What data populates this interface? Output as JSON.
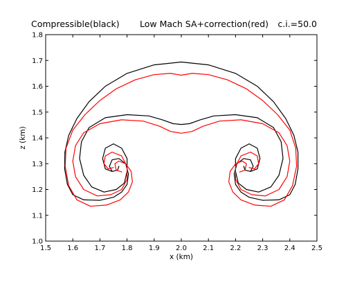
{
  "chart_data": {
    "type": "line",
    "title_left": "Compressible(black)",
    "title_center": "Low Mach SA+correction(red)",
    "title_right": "c.i.=50.0",
    "xlabel": "x (km)",
    "ylabel": "z (km)",
    "xlim": [
      1.5,
      2.5
    ],
    "ylim": [
      1.0,
      1.8
    ],
    "xticks": [
      "1.5",
      "1.6",
      "1.7",
      "1.8",
      "1.9",
      "2.0",
      "2.1",
      "2.2",
      "2.3",
      "2.4",
      "2.5"
    ],
    "yticks": [
      "1.0",
      "1.1",
      "1.2",
      "1.3",
      "1.4",
      "1.5",
      "1.6",
      "1.7",
      "1.8"
    ],
    "grid": false,
    "colors": {
      "compressible": "#000000",
      "low_mach": "#ff0000"
    },
    "series": [
      {
        "name": "Compressible",
        "color": "#000000",
        "contours": [
          {
            "label": "outer",
            "points": [
              [
                1.571,
                1.345
              ],
              [
                1.585,
                1.41
              ],
              [
                1.615,
                1.475
              ],
              [
                1.66,
                1.54
              ],
              [
                1.72,
                1.6
              ],
              [
                1.8,
                1.65
              ],
              [
                1.9,
                1.683
              ],
              [
                2.0,
                1.694
              ],
              [
                2.1,
                1.683
              ],
              [
                2.2,
                1.65
              ],
              [
                2.28,
                1.6
              ],
              [
                2.34,
                1.54
              ],
              [
                2.385,
                1.475
              ],
              [
                2.415,
                1.41
              ],
              [
                2.43,
                1.345
              ],
              [
                2.43,
                1.28
              ],
              [
                2.42,
                1.22
              ],
              [
                2.4,
                1.18
              ],
              [
                2.36,
                1.16
              ],
              [
                2.3,
                1.158
              ],
              [
                2.25,
                1.17
              ],
              [
                2.22,
                1.19
              ],
              [
                2.2,
                1.22
              ],
              [
                2.195,
                1.26
              ],
              [
                2.205,
                1.3
              ],
              [
                2.23,
                1.32
              ],
              [
                2.255,
                1.315
              ],
              [
                2.265,
                1.29
              ],
              [
                2.255,
                1.27
              ],
              [
                2.235,
                1.275
              ],
              [
                2.23,
                1.29
              ]
            ]
          },
          {
            "label": "outer-mirror",
            "points": [
              [
                1.571,
                1.345
              ],
              [
                1.57,
                1.28
              ],
              [
                1.58,
                1.22
              ],
              [
                1.6,
                1.18
              ],
              [
                1.64,
                1.16
              ],
              [
                1.7,
                1.158
              ],
              [
                1.75,
                1.17
              ],
              [
                1.78,
                1.19
              ],
              [
                1.8,
                1.22
              ],
              [
                1.805,
                1.26
              ],
              [
                1.795,
                1.3
              ],
              [
                1.77,
                1.32
              ],
              [
                1.745,
                1.315
              ],
              [
                1.735,
                1.29
              ],
              [
                1.745,
                1.27
              ],
              [
                1.765,
                1.275
              ],
              [
                1.77,
                1.29
              ]
            ]
          },
          {
            "label": "inner",
            "points": [
              [
                1.625,
                1.32
              ],
              [
                1.632,
                1.385
              ],
              [
                1.66,
                1.44
              ],
              [
                1.72,
                1.478
              ],
              [
                1.8,
                1.49
              ],
              [
                1.88,
                1.485
              ],
              [
                1.93,
                1.47
              ],
              [
                1.97,
                1.455
              ],
              [
                2.0,
                1.452
              ],
              [
                2.03,
                1.455
              ],
              [
                2.07,
                1.47
              ],
              [
                2.12,
                1.485
              ],
              [
                2.2,
                1.49
              ],
              [
                2.28,
                1.478
              ],
              [
                2.34,
                1.44
              ],
              [
                2.368,
                1.385
              ],
              [
                2.375,
                1.32
              ],
              [
                2.36,
                1.255
              ],
              [
                2.33,
                1.21
              ],
              [
                2.285,
                1.19
              ],
              [
                2.24,
                1.2
              ],
              [
                2.21,
                1.225
              ],
              [
                2.2,
                1.27
              ],
              [
                2.2,
                1.32
              ],
              [
                2.22,
                1.36
              ],
              [
                2.25,
                1.377
              ],
              [
                2.28,
                1.36
              ],
              [
                2.29,
                1.32
              ],
              [
                2.28,
                1.28
              ],
              [
                2.255,
                1.27
              ]
            ]
          },
          {
            "label": "inner-mirror",
            "points": [
              [
                1.625,
                1.32
              ],
              [
                1.64,
                1.255
              ],
              [
                1.67,
                1.21
              ],
              [
                1.715,
                1.19
              ],
              [
                1.76,
                1.2
              ],
              [
                1.79,
                1.225
              ],
              [
                1.8,
                1.27
              ],
              [
                1.8,
                1.32
              ],
              [
                1.78,
                1.36
              ],
              [
                1.75,
                1.377
              ],
              [
                1.72,
                1.36
              ],
              [
                1.71,
                1.32
              ],
              [
                1.72,
                1.28
              ],
              [
                1.745,
                1.27
              ]
            ]
          }
        ]
      },
      {
        "name": "Low Mach SA+correction",
        "color": "#ff0000",
        "contours": [
          {
            "label": "outer",
            "points": [
              [
                1.575,
                1.36
              ],
              [
                1.6,
                1.43
              ],
              [
                1.645,
                1.49
              ],
              [
                1.7,
                1.545
              ],
              [
                1.76,
                1.59
              ],
              [
                1.83,
                1.625
              ],
              [
                1.9,
                1.645
              ],
              [
                1.96,
                1.65
              ],
              [
                2.0,
                1.643
              ],
              [
                2.04,
                1.65
              ],
              [
                2.1,
                1.645
              ],
              [
                2.17,
                1.625
              ],
              [
                2.24,
                1.59
              ],
              [
                2.3,
                1.545
              ],
              [
                2.355,
                1.49
              ],
              [
                2.4,
                1.43
              ],
              [
                2.422,
                1.36
              ],
              [
                2.425,
                1.29
              ],
              [
                2.41,
                1.215
              ],
              [
                2.38,
                1.16
              ],
              [
                2.33,
                1.135
              ],
              [
                2.27,
                1.14
              ],
              [
                2.22,
                1.16
              ],
              [
                2.19,
                1.19
              ],
              [
                2.175,
                1.23
              ],
              [
                2.18,
                1.27
              ],
              [
                2.2,
                1.3
              ],
              [
                2.225,
                1.31
              ],
              [
                2.24,
                1.3
              ],
              [
                2.235,
                1.275
              ],
              [
                2.215,
                1.268
              ]
            ]
          },
          {
            "label": "outer-mirror",
            "points": [
              [
                1.575,
                1.36
              ],
              [
                1.572,
                1.29
              ],
              [
                1.585,
                1.215
              ],
              [
                1.615,
                1.16
              ],
              [
                1.665,
                1.135
              ],
              [
                1.725,
                1.14
              ],
              [
                1.775,
                1.16
              ],
              [
                1.805,
                1.19
              ],
              [
                1.82,
                1.23
              ],
              [
                1.815,
                1.27
              ],
              [
                1.795,
                1.3
              ],
              [
                1.77,
                1.31
              ],
              [
                1.755,
                1.3
              ],
              [
                1.76,
                1.275
              ],
              [
                1.78,
                1.268
              ]
            ]
          },
          {
            "label": "inner",
            "points": [
              [
                1.6,
                1.31
              ],
              [
                1.61,
                1.37
              ],
              [
                1.64,
                1.42
              ],
              [
                1.7,
                1.455
              ],
              [
                1.78,
                1.47
              ],
              [
                1.86,
                1.465
              ],
              [
                1.92,
                1.445
              ],
              [
                1.96,
                1.425
              ],
              [
                2.0,
                1.418
              ],
              [
                2.04,
                1.425
              ],
              [
                2.08,
                1.445
              ],
              [
                2.14,
                1.465
              ],
              [
                2.22,
                1.47
              ],
              [
                2.3,
                1.455
              ],
              [
                2.36,
                1.42
              ],
              [
                2.39,
                1.37
              ],
              [
                2.4,
                1.31
              ],
              [
                2.39,
                1.25
              ],
              [
                2.36,
                1.2
              ],
              [
                2.31,
                1.175
              ],
              [
                2.26,
                1.18
              ],
              [
                2.22,
                1.2
              ],
              [
                2.2,
                1.24
              ],
              [
                2.2,
                1.29
              ],
              [
                2.22,
                1.33
              ],
              [
                2.255,
                1.345
              ],
              [
                2.28,
                1.33
              ],
              [
                2.285,
                1.3
              ],
              [
                2.27,
                1.28
              ],
              [
                2.25,
                1.285
              ]
            ]
          },
          {
            "label": "inner-mirror",
            "points": [
              [
                1.6,
                1.31
              ],
              [
                1.61,
                1.25
              ],
              [
                1.64,
                1.2
              ],
              [
                1.69,
                1.175
              ],
              [
                1.74,
                1.18
              ],
              [
                1.78,
                1.2
              ],
              [
                1.8,
                1.24
              ],
              [
                1.8,
                1.29
              ],
              [
                1.78,
                1.33
              ],
              [
                1.745,
                1.345
              ],
              [
                1.72,
                1.33
              ],
              [
                1.715,
                1.3
              ],
              [
                1.73,
                1.28
              ],
              [
                1.75,
                1.285
              ]
            ]
          }
        ]
      }
    ]
  }
}
